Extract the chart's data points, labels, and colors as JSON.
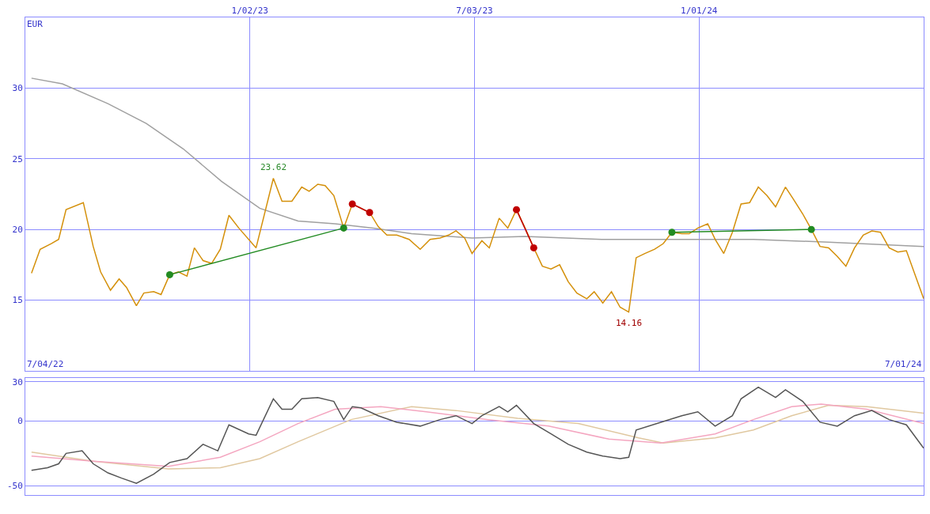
{
  "chart_data": [
    {
      "type": "line",
      "ylabel": "EUR",
      "xlim": [
        "2022-07-04",
        "2024-07-01"
      ],
      "ylim": [
        10,
        35
      ],
      "yticks": [
        15,
        20,
        25,
        30
      ],
      "xticks": [
        {
          "value": "2023-01-02",
          "label": "1/02/23"
        },
        {
          "value": "2023-07-03",
          "label": "7/03/23"
        },
        {
          "value": "2024-01-01",
          "label": "1/01/24"
        }
      ],
      "grid": true,
      "marker": "none",
      "annotations": [
        {
          "text": "23.62",
          "x": "2023-01-21",
          "y": 23.62
        },
        {
          "text": "14.16",
          "x": "2023-11-05",
          "y": 14.16
        },
        "7/04/22",
        "7/01/24"
      ],
      "series": [
        {
          "color": "#a0a0a0",
          "x": [
            "2022-07-09",
            "2022-08-03",
            "2022-09-09",
            "2022-10-10",
            "2022-11-09",
            "2022-12-10",
            "2023-01-10",
            "2023-02-10",
            "2023-03-12",
            "2023-04-12",
            "2023-05-13",
            "2023-07-01",
            "2023-08-13",
            "2023-10-14",
            "2023-12-03",
            "2024-02-14",
            "2024-04-15",
            "2024-07-01"
          ],
          "values": [
            30.7,
            30.3,
            28.9,
            27.5,
            25.7,
            23.4,
            21.5,
            20.6,
            20.4,
            20.1,
            19.7,
            19.4,
            19.5,
            19.3,
            19.3,
            19.3,
            19.1,
            18.8
          ]
        },
        {
          "color": "#d4900a",
          "x": [
            "2022-07-09",
            "2022-07-16",
            "2022-07-25",
            "2022-07-31",
            "2022-08-06",
            "2022-08-20",
            "2022-08-28",
            "2022-09-03",
            "2022-09-11",
            "2022-09-18",
            "2022-09-24",
            "2022-10-02",
            "2022-10-08",
            "2022-10-16",
            "2022-10-22",
            "2022-10-29",
            "2022-11-05",
            "2022-11-12",
            "2022-11-18",
            "2022-11-25",
            "2022-12-02",
            "2022-12-09",
            "2022-12-16",
            "2022-12-24",
            "2023-01-07",
            "2023-01-21",
            "2023-01-28",
            "2023-02-05",
            "2023-02-13",
            "2023-02-19",
            "2023-02-26",
            "2023-03-04",
            "2023-03-11",
            "2023-03-19",
            "2023-03-26",
            "2023-04-02",
            "2023-04-09",
            "2023-04-16",
            "2023-04-23",
            "2023-05-01",
            "2023-05-11",
            "2023-05-20",
            "2023-05-28",
            "2023-06-05",
            "2023-06-12",
            "2023-06-18",
            "2023-06-25",
            "2023-07-01",
            "2023-07-09",
            "2023-07-15",
            "2023-07-23",
            "2023-07-30",
            "2023-08-06",
            "2023-08-13",
            "2023-08-20",
            "2023-08-27",
            "2023-09-03",
            "2023-09-10",
            "2023-09-17",
            "2023-09-24",
            "2023-10-02",
            "2023-10-08",
            "2023-10-15",
            "2023-10-22",
            "2023-10-29",
            "2023-11-05",
            "2023-11-11",
            "2023-11-18",
            "2023-11-26",
            "2023-12-03",
            "2023-12-10",
            "2023-12-18",
            "2023-12-24",
            "2023-12-31",
            "2024-01-08",
            "2024-01-14",
            "2024-01-21",
            "2024-01-28",
            "2024-02-04",
            "2024-02-11",
            "2024-02-18",
            "2024-02-25",
            "2024-03-03",
            "2024-03-11",
            "2024-03-17",
            "2024-03-25",
            "2024-04-01",
            "2024-04-08",
            "2024-04-15",
            "2024-04-22",
            "2024-04-29",
            "2024-05-06",
            "2024-05-13",
            "2024-05-20",
            "2024-05-27",
            "2024-06-03",
            "2024-06-10",
            "2024-06-17",
            "2024-07-01"
          ],
          "values": [
            16.9,
            18.6,
            19.0,
            19.3,
            21.4,
            21.9,
            18.8,
            17.0,
            15.7,
            16.5,
            15.9,
            14.6,
            15.5,
            15.6,
            15.4,
            16.8,
            17.0,
            16.7,
            18.7,
            17.8,
            17.6,
            18.6,
            21.0,
            20.1,
            18.7,
            23.62,
            22.0,
            22.0,
            23.0,
            22.7,
            23.2,
            23.1,
            22.4,
            20.1,
            21.8,
            21.5,
            21.2,
            20.2,
            19.6,
            19.6,
            19.3,
            18.6,
            19.3,
            19.4,
            19.6,
            19.9,
            19.4,
            18.3,
            19.2,
            18.7,
            20.8,
            20.1,
            21.4,
            20.1,
            18.7,
            17.4,
            17.2,
            17.5,
            16.3,
            15.5,
            15.1,
            15.6,
            14.8,
            15.6,
            14.5,
            14.16,
            18.0,
            18.3,
            18.6,
            19.0,
            19.8,
            19.7,
            19.7,
            20.1,
            20.4,
            19.3,
            18.3,
            19.8,
            21.8,
            21.9,
            23.0,
            22.4,
            21.6,
            23.0,
            22.2,
            21.1,
            20.0,
            18.8,
            18.7,
            18.1,
            17.4,
            18.7,
            19.6,
            19.9,
            19.8,
            18.7,
            18.4,
            18.5,
            15.1
          ]
        },
        {
          "color": "#228b22",
          "marker": "circle",
          "x": [
            "2022-10-29",
            "2023-03-19"
          ],
          "values": [
            16.8,
            20.1
          ]
        },
        {
          "color": "#c00000",
          "marker": "circle",
          "x": [
            "2023-03-26",
            "2023-04-09"
          ],
          "values": [
            21.8,
            21.2
          ]
        },
        {
          "color": "#c00000",
          "marker": "circle",
          "x": [
            "2023-08-06",
            "2023-08-20"
          ],
          "values": [
            21.4,
            18.7
          ]
        },
        {
          "color": "#228b22",
          "marker": "circle",
          "x": [
            "2023-12-10",
            "2024-04-01"
          ],
          "values": [
            19.8,
            20.0
          ]
        }
      ]
    },
    {
      "type": "line",
      "xlim": [
        "2022-07-04",
        "2024-07-01"
      ],
      "ylim": [
        -57,
        33
      ],
      "yticks": [
        -50,
        0,
        30
      ],
      "tick_labels": "y",
      "grid": true,
      "marker": "none",
      "series": [
        {
          "color": "#e0c8a0",
          "x": [
            "2022-07-09",
            "2022-08-28",
            "2022-10-28",
            "2022-12-09",
            "2023-01-10",
            "2023-02-10",
            "2023-03-25",
            "2023-05-13",
            "2023-06-18",
            "2023-08-07",
            "2023-09-25",
            "2023-11-13",
            "2023-12-03",
            "2024-01-14",
            "2024-02-14",
            "2024-03-16",
            "2024-04-15",
            "2024-05-16",
            "2024-07-01"
          ],
          "values": [
            -24,
            -31,
            -37,
            -36,
            -29,
            -16,
            1,
            11,
            8,
            2,
            -2,
            -13,
            -17,
            -13,
            -7,
            4,
            12,
            11,
            6
          ]
        },
        {
          "color": "#f4a6c0",
          "x": [
            "2022-07-09",
            "2022-08-28",
            "2022-10-28",
            "2022-12-09",
            "2023-01-10",
            "2023-02-10",
            "2023-03-12",
            "2023-04-18",
            "2023-05-25",
            "2023-07-14",
            "2023-09-01",
            "2023-10-20",
            "2023-12-01",
            "2024-01-14",
            "2024-02-14",
            "2024-03-16",
            "2024-04-09",
            "2024-05-16",
            "2024-07-01"
          ],
          "values": [
            -27,
            -31,
            -35,
            -28,
            -16,
            -2,
            9,
            11,
            7,
            1,
            -4,
            -14,
            -17,
            -10,
            1,
            11,
            13,
            9,
            -2
          ]
        },
        {
          "color": "#555555",
          "x": [
            "2022-07-09",
            "2022-07-22",
            "2022-07-31",
            "2022-08-06",
            "2022-08-19",
            "2022-08-28",
            "2022-09-09",
            "2022-09-20",
            "2022-10-02",
            "2022-10-16",
            "2022-10-29",
            "2022-11-12",
            "2022-11-25",
            "2022-12-07",
            "2022-12-16",
            "2023-01-01",
            "2023-01-07",
            "2023-01-21",
            "2023-01-28",
            "2023-02-05",
            "2023-02-13",
            "2023-02-26",
            "2023-03-11",
            "2023-03-19",
            "2023-03-26",
            "2023-04-02",
            "2023-04-16",
            "2023-05-01",
            "2023-05-20",
            "2023-06-05",
            "2023-06-18",
            "2023-07-01",
            "2023-07-09",
            "2023-07-23",
            "2023-07-30",
            "2023-08-06",
            "2023-08-20",
            "2023-09-03",
            "2023-09-17",
            "2023-10-02",
            "2023-10-15",
            "2023-10-29",
            "2023-11-05",
            "2023-11-11",
            "2023-12-01",
            "2023-12-18",
            "2023-12-31",
            "2024-01-14",
            "2024-01-28",
            "2024-02-04",
            "2024-02-18",
            "2024-03-03",
            "2024-03-11",
            "2024-03-25",
            "2024-04-08",
            "2024-04-22",
            "2024-05-06",
            "2024-05-20",
            "2024-06-03",
            "2024-06-17",
            "2024-07-01"
          ],
          "values": [
            -38,
            -36,
            -33,
            -25,
            -23,
            -33,
            -40,
            -44,
            -48,
            -41,
            -32,
            -29,
            -18,
            -23,
            -3,
            -10,
            -11,
            17,
            9,
            9,
            17,
            18,
            15,
            1,
            11,
            10,
            4,
            -1,
            -4,
            1,
            4,
            -2,
            4,
            11,
            7,
            12,
            -2,
            -10,
            -18,
            -24,
            -27,
            -29,
            -28,
            -7,
            -1,
            4,
            7,
            -4,
            4,
            17,
            26,
            18,
            24,
            15,
            -1,
            -4,
            4,
            8,
            1,
            -3,
            -21
          ]
        }
      ]
    }
  ]
}
